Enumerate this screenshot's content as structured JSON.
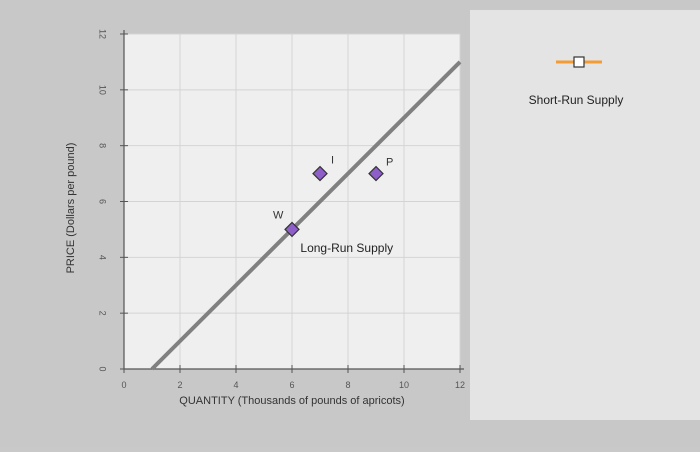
{
  "chart_data": {
    "type": "line",
    "xlabel": "QUANTITY (Thousands of pounds of apricots)",
    "ylabel": "PRICE (Dollars per pound)",
    "xlim": [
      0,
      12
    ],
    "ylim": [
      0,
      12
    ],
    "x_ticks": [
      0,
      2,
      4,
      6,
      8,
      10,
      12
    ],
    "y_ticks": [
      0,
      2,
      4,
      6,
      8,
      10,
      12
    ],
    "grid": true,
    "series": [
      {
        "name": "Long-Run Supply",
        "color": "#808080",
        "points": [
          {
            "x": 1,
            "y": 0
          },
          {
            "x": 12,
            "y": 11
          }
        ]
      }
    ],
    "points": [
      {
        "label": "W",
        "x": 6,
        "y": 5
      },
      {
        "label": "I",
        "x": 7,
        "y": 7
      },
      {
        "label": "P",
        "x": 9,
        "y": 7
      }
    ],
    "point_color": "#8e5ec9",
    "legend": [
      {
        "label": "Short-Run Supply",
        "color": "#f39c33",
        "marker": "square"
      }
    ],
    "legend_position": "top-right"
  }
}
